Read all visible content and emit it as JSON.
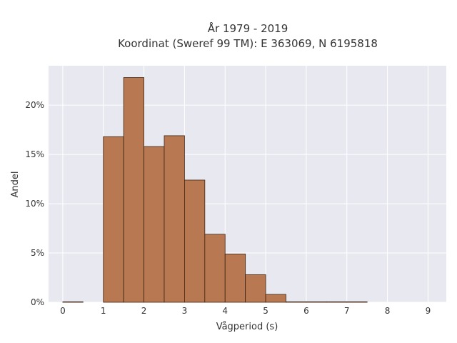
{
  "chart_data": {
    "type": "bar",
    "title": "År 1979 - 2019",
    "subtitle": "Koordinat (Sweref 99 TM): E 363069, N 6195818",
    "xlabel": "Vågperiod (s)",
    "ylabel": "Andel",
    "bin_width": 0.5,
    "bins": [
      {
        "start": 0.0,
        "value": 0.05
      },
      {
        "start": 0.5,
        "value": 0.0
      },
      {
        "start": 1.0,
        "value": 16.8
      },
      {
        "start": 1.5,
        "value": 22.8
      },
      {
        "start": 2.0,
        "value": 15.8
      },
      {
        "start": 2.5,
        "value": 16.9
      },
      {
        "start": 3.0,
        "value": 12.4
      },
      {
        "start": 3.5,
        "value": 6.9
      },
      {
        "start": 4.0,
        "value": 4.9
      },
      {
        "start": 4.5,
        "value": 2.8
      },
      {
        "start": 5.0,
        "value": 0.8
      },
      {
        "start": 5.5,
        "value": 0.05
      },
      {
        "start": 6.0,
        "value": 0.05
      },
      {
        "start": 6.5,
        "value": 0.05
      },
      {
        "start": 7.0,
        "value": 0.05
      }
    ],
    "xlim": [
      -0.35,
      9.45
    ],
    "ylim": [
      0,
      24
    ],
    "xticks": [
      0,
      1,
      2,
      3,
      4,
      5,
      6,
      7,
      8,
      9
    ],
    "yticks": [
      0,
      5,
      10,
      15,
      20
    ],
    "ytick_labels": [
      "0%",
      "5%",
      "10%",
      "15%",
      "20%"
    ],
    "grid": true,
    "colors": {
      "bar_fill": "#b87851",
      "bar_stroke": "#3d2412",
      "plot_bg": "#e8e8f0",
      "grid": "#ffffff"
    }
  }
}
